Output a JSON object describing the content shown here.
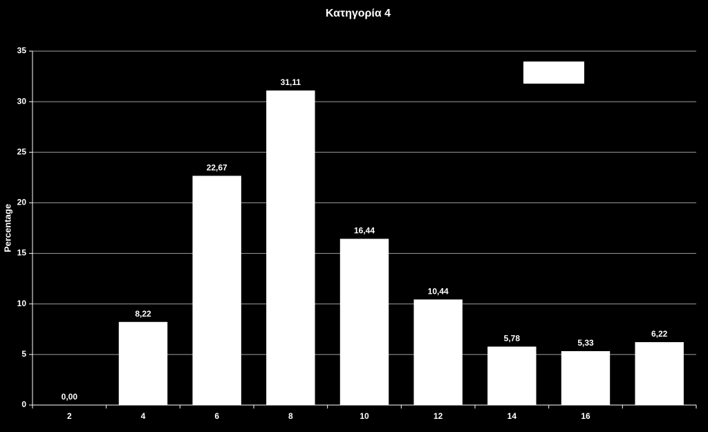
{
  "chart_data": {
    "type": "bar",
    "title": "Κατηγορία 4",
    "y_label": "Percentage",
    "categories": [
      "2",
      "4",
      "6",
      "8",
      "10",
      "12",
      "14",
      "16",
      null
    ],
    "values": [
      0,
      8.22,
      22.67,
      31.11,
      16.44,
      10.44,
      5.78,
      5.33,
      6.22
    ],
    "value_labels": [
      "0,00",
      "8,22",
      "22,67",
      "31,11",
      "16,44",
      "10,44",
      "5,78",
      "5,33",
      "6,22"
    ],
    "color": "#ffffff",
    "ylim": [
      0,
      35
    ],
    "yticks": [
      0,
      5,
      10,
      15,
      20,
      25,
      30,
      35
    ],
    "grid": true
  }
}
